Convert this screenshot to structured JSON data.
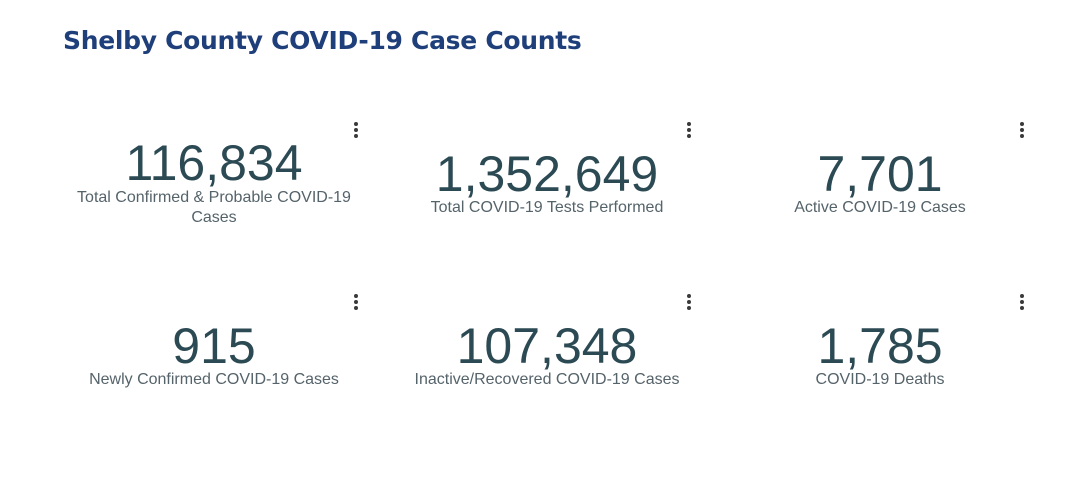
{
  "dashboard": {
    "title": "Shelby County COVID-19 Case Counts",
    "menu_icon": "more-vertical-icon",
    "colors": {
      "title": "#1f3f7a",
      "value": "#2c4a54",
      "label": "#55636a"
    },
    "cards": [
      {
        "value": "116,834",
        "label": "Total Confirmed & Probable COVID-19 Cases"
      },
      {
        "value": "1,352,649",
        "label": "Total COVID-19 Tests Performed"
      },
      {
        "value": "7,701",
        "label": "Active COVID-19 Cases"
      },
      {
        "value": "915",
        "label": "Newly Confirmed COVID-19 Cases"
      },
      {
        "value": "107,348",
        "label": "Inactive/Recovered COVID-19 Cases"
      },
      {
        "value": "1,785",
        "label": "COVID-19 Deaths"
      }
    ]
  }
}
